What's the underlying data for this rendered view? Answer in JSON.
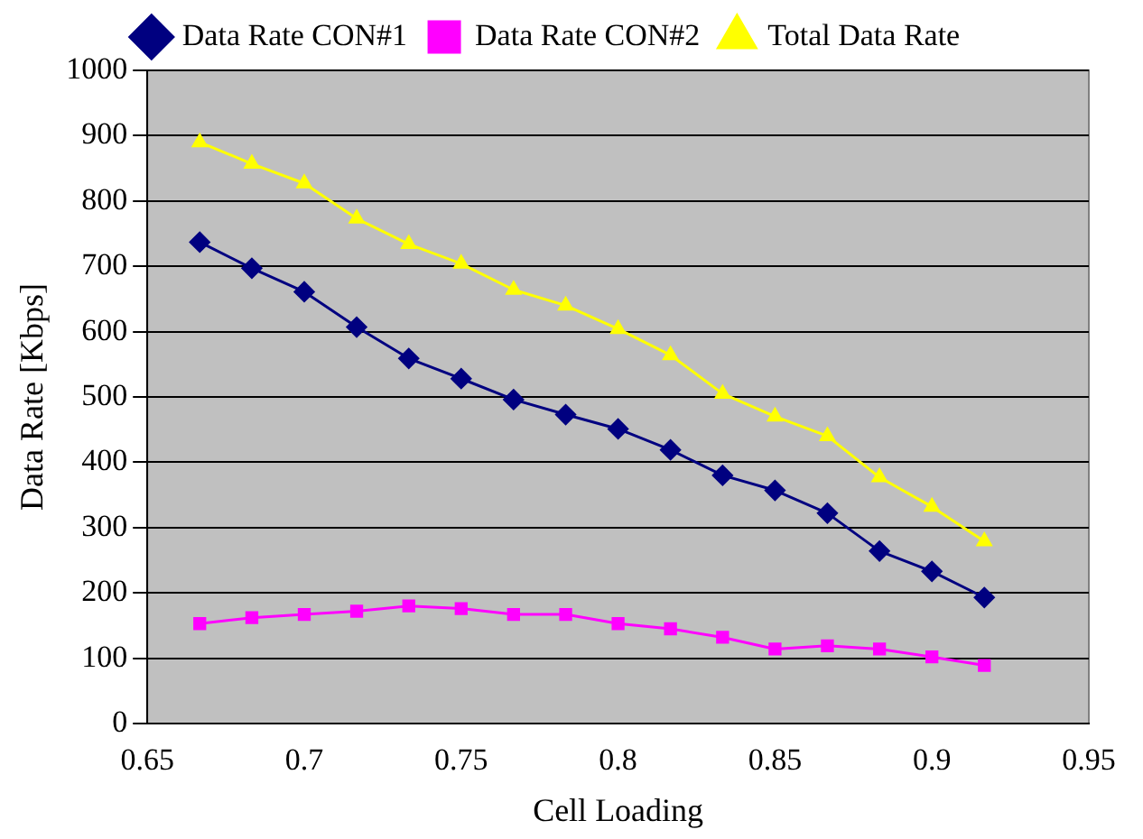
{
  "chart_data": {
    "type": "line",
    "xlabel": "Cell Loading",
    "ylabel": "Data Rate [Kbps]",
    "x": [
      0.6667,
      0.6833,
      0.7,
      0.7167,
      0.7333,
      0.75,
      0.7667,
      0.7833,
      0.8,
      0.8167,
      0.8333,
      0.85,
      0.8667,
      0.8833,
      0.9,
      0.9167
    ],
    "series": [
      {
        "name": "Data Rate CON#1",
        "color": "#000080",
        "marker": "diamond",
        "values": [
          737,
          697,
          661,
          607,
          559,
          528,
          496,
          473,
          451,
          419,
          380,
          357,
          322,
          264,
          233,
          193
        ]
      },
      {
        "name": "Data Rate CON#2",
        "color": "#ff00ff",
        "marker": "square",
        "values": [
          153,
          162,
          167,
          172,
          180,
          176,
          167,
          167,
          153,
          145,
          132,
          114,
          119,
          114,
          102,
          89
        ]
      },
      {
        "name": "Total Data Rate",
        "color": "#ffff00",
        "marker": "triangle",
        "values": [
          890,
          857,
          827,
          773,
          734,
          704,
          664,
          640,
          604,
          564,
          505,
          470,
          440,
          377,
          332,
          279
        ]
      }
    ],
    "xlim": [
      0.65,
      0.95
    ],
    "xticks": [
      0.65,
      0.7,
      0.75,
      0.8,
      0.85,
      0.9,
      0.95
    ],
    "ylim": [
      0,
      1000
    ],
    "yticks": [
      0,
      100,
      200,
      300,
      400,
      500,
      600,
      700,
      800,
      900,
      1000
    ],
    "grid": "y",
    "legend": "top",
    "line_style": "solid"
  }
}
